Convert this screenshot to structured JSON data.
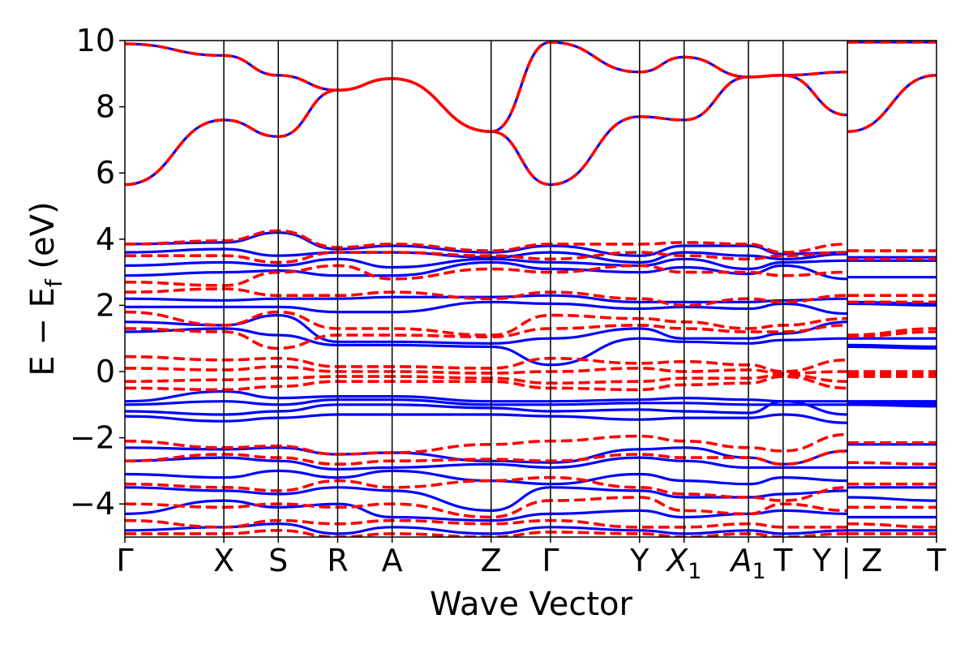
{
  "chart_data": {
    "type": "line",
    "title": "",
    "xlabel": "Wave Vector",
    "ylabel_parts": {
      "main": "E − E",
      "sub": "f",
      "unit": " (eV)"
    },
    "ylim": [
      -5,
      10
    ],
    "yticks": [
      -4,
      -2,
      0,
      2,
      4,
      6,
      8,
      10
    ],
    "ytick_labels": [
      "−4",
      "−2",
      "0",
      "2",
      "4",
      "6",
      "8",
      "10"
    ],
    "kpath_positions": [
      0,
      1.0,
      1.55,
      2.15,
      2.7,
      3.7,
      4.3,
      5.2,
      5.65,
      6.3,
      6.65,
      7.3,
      8.2
    ],
    "kpoint_labels": [
      {
        "main": "Γ",
        "sub": ""
      },
      {
        "main": "X",
        "sub": ""
      },
      {
        "main": "S",
        "sub": ""
      },
      {
        "main": "R",
        "sub": ""
      },
      {
        "main": "A",
        "sub": ""
      },
      {
        "main": "Z",
        "sub": ""
      },
      {
        "main": "Γ",
        "sub": ""
      },
      {
        "main": "Y",
        "sub": ""
      },
      {
        "main": "X",
        "sub": "1"
      },
      {
        "main": "A",
        "sub": "1"
      },
      {
        "main": "T",
        "sub": ""
      },
      {
        "main": "Y | Z",
        "sub": ""
      },
      {
        "main": "T",
        "sub": ""
      }
    ],
    "series": [
      {
        "name": "blue-solid",
        "color": "#0000ff",
        "style": "solid",
        "bands": [
          [
            5.65,
            7.6,
            7.1,
            8.5,
            8.85,
            7.25,
            5.65,
            7.7,
            7.6,
            8.9,
            8.95,
            7.75,
            7.25,
            8.95
          ],
          [
            9.9,
            9.55,
            8.95,
            8.5,
            8.85,
            7.25,
            9.95,
            9.05,
            9.5,
            8.9,
            8.95,
            9.05,
            9.95,
            9.95
          ],
          [
            3.85,
            3.9,
            4.2,
            3.7,
            3.8,
            3.6,
            3.8,
            3.5,
            3.8,
            3.8,
            3.55,
            3.6,
            3.45,
            3.45
          ],
          [
            3.6,
            3.7,
            3.5,
            3.6,
            3.6,
            3.45,
            3.6,
            3.3,
            3.6,
            3.5,
            3.4,
            3.55,
            3.35,
            3.35
          ],
          [
            3.2,
            3.3,
            3.2,
            3.4,
            3.15,
            3.4,
            3.3,
            3.2,
            3.4,
            3.1,
            3.3,
            3.35,
            2.85,
            2.85
          ],
          [
            2.9,
            3.0,
            3.05,
            2.9,
            2.9,
            3.3,
            3.1,
            3.0,
            3.15,
            2.95,
            3.2,
            2.8,
            2.1,
            2.05
          ],
          [
            2.2,
            2.15,
            2.2,
            2.2,
            2.25,
            2.25,
            2.3,
            2.1,
            2.1,
            2.1,
            2.15,
            2.2,
            2.05,
            2.0
          ],
          [
            1.95,
            1.95,
            1.95,
            1.8,
            1.8,
            2.1,
            2.05,
            1.9,
            1.95,
            1.9,
            2.05,
            1.75,
            1.0,
            1.0
          ],
          [
            1.5,
            1.4,
            1.7,
            0.9,
            0.9,
            0.85,
            1.0,
            1.3,
            1.0,
            1.0,
            1.15,
            1.5,
            0.8,
            0.75
          ],
          [
            1.2,
            1.3,
            1.1,
            0.8,
            0.8,
            0.75,
            0.2,
            1.0,
            0.9,
            0.85,
            0.95,
            1.0,
            0.75,
            0.7
          ],
          [
            -0.9,
            -0.6,
            -0.8,
            -0.75,
            -0.75,
            -0.9,
            -0.9,
            -0.85,
            -0.8,
            -0.85,
            -0.9,
            -0.9,
            -0.9,
            -0.9
          ],
          [
            -1.0,
            -0.9,
            -1.0,
            -0.85,
            -0.85,
            -1.0,
            -1.0,
            -0.95,
            -0.95,
            -1.0,
            -1.0,
            -1.0,
            -0.95,
            -0.95
          ],
          [
            -1.2,
            -1.3,
            -1.2,
            -1.0,
            -1.0,
            -1.1,
            -1.2,
            -1.15,
            -1.2,
            -1.25,
            -0.9,
            -1.3,
            -1.0,
            -1.0
          ],
          [
            -1.35,
            -1.5,
            -1.4,
            -1.3,
            -1.3,
            -1.3,
            -1.35,
            -1.45,
            -1.4,
            -1.4,
            -1.3,
            -1.55,
            -1.0,
            -1.05
          ],
          [
            -2.3,
            -2.35,
            -2.3,
            -2.5,
            -2.45,
            -2.7,
            -2.75,
            -2.35,
            -2.3,
            -2.6,
            -2.8,
            -2.4,
            -2.2,
            -2.2
          ],
          [
            -2.7,
            -2.6,
            -2.7,
            -2.95,
            -2.9,
            -2.8,
            -2.9,
            -2.6,
            -2.7,
            -2.9,
            -2.9,
            -2.9,
            -2.9,
            -2.9
          ],
          [
            -3.1,
            -3.2,
            -3.0,
            -3.2,
            -3.0,
            -3.3,
            -3.4,
            -3.1,
            -3.3,
            -3.4,
            -3.2,
            -3.3,
            -3.5,
            -3.5
          ],
          [
            -3.5,
            -3.6,
            -3.7,
            -3.5,
            -3.6,
            -4.2,
            -3.5,
            -3.6,
            -3.8,
            -3.8,
            -3.7,
            -3.6,
            -3.8,
            -3.9
          ],
          [
            -4.3,
            -3.9,
            -4.1,
            -4.0,
            -4.4,
            -4.5,
            -4.3,
            -4.2,
            -4.4,
            -4.3,
            -4.2,
            -4.3,
            -4.4,
            -4.4
          ],
          [
            -4.8,
            -4.7,
            -4.6,
            -4.9,
            -4.7,
            -4.9,
            -4.7,
            -4.8,
            -4.9,
            -4.8,
            -4.9,
            -4.8,
            -4.8,
            -4.8
          ]
        ]
      },
      {
        "name": "red-dashed",
        "color": "#ff0000",
        "style": "dashed",
        "bands": [
          [
            5.65,
            7.6,
            7.1,
            8.5,
            8.85,
            7.25,
            5.65,
            7.7,
            7.6,
            8.9,
            8.95,
            7.75,
            7.25,
            8.95
          ],
          [
            9.9,
            9.55,
            8.95,
            8.5,
            8.85,
            7.25,
            9.95,
            9.05,
            9.5,
            8.9,
            8.95,
            9.05,
            9.95,
            9.95
          ],
          [
            3.85,
            3.95,
            4.25,
            3.75,
            3.85,
            3.65,
            3.85,
            3.85,
            3.9,
            3.85,
            3.6,
            3.85,
            3.65,
            3.65
          ],
          [
            3.5,
            3.5,
            3.3,
            3.6,
            3.6,
            3.5,
            3.4,
            3.6,
            3.5,
            3.4,
            3.5,
            3.6,
            3.4,
            3.4
          ],
          [
            2.7,
            2.6,
            3.0,
            3.2,
            2.8,
            3.1,
            3.0,
            3.2,
            3.0,
            3.0,
            2.9,
            3.0,
            2.3,
            2.3
          ],
          [
            2.4,
            2.5,
            2.3,
            2.3,
            2.4,
            2.2,
            2.4,
            2.2,
            2.0,
            2.2,
            2.1,
            2.3,
            2.1,
            2.1
          ],
          [
            1.8,
            1.4,
            1.8,
            1.3,
            1.3,
            1.1,
            1.7,
            1.6,
            1.5,
            1.3,
            1.4,
            1.6,
            1.1,
            1.3
          ],
          [
            1.3,
            1.2,
            0.7,
            1.1,
            1.1,
            1.05,
            1.3,
            1.4,
            1.3,
            1.2,
            1.2,
            1.4,
            1.05,
            1.2
          ],
          [
            0.45,
            0.35,
            0.4,
            0.15,
            0.15,
            0.1,
            0.4,
            0.25,
            0.3,
            0.2,
            0.0,
            0.35,
            0.0,
            0.0
          ],
          [
            0.1,
            0.05,
            0.15,
            0.0,
            0.0,
            -0.05,
            0.0,
            0.1,
            0.0,
            0.05,
            -0.05,
            0.0,
            -0.05,
            -0.05
          ],
          [
            -0.3,
            -0.25,
            -0.2,
            -0.15,
            -0.15,
            -0.2,
            -0.35,
            -0.3,
            -0.2,
            -0.2,
            -0.1,
            -0.3,
            -0.1,
            -0.1
          ],
          [
            -0.5,
            -0.55,
            -0.45,
            -0.3,
            -0.3,
            -0.3,
            -0.5,
            -0.55,
            -0.4,
            -0.35,
            -0.15,
            -0.5,
            -0.15,
            -0.15
          ],
          [
            -2.1,
            -2.3,
            -2.25,
            -2.5,
            -2.45,
            -2.2,
            -2.1,
            -1.95,
            -2.1,
            -2.3,
            -2.4,
            -1.9,
            -2.15,
            -2.15
          ],
          [
            -2.7,
            -2.5,
            -2.6,
            -2.8,
            -2.7,
            -2.65,
            -2.7,
            -2.5,
            -2.6,
            -2.6,
            -2.8,
            -2.4,
            -2.75,
            -2.8
          ],
          [
            -3.4,
            -3.5,
            -3.6,
            -3.3,
            -3.5,
            -3.3,
            -3.2,
            -3.5,
            -3.7,
            -3.8,
            -3.9,
            -3.5,
            -3.4,
            -3.4
          ],
          [
            -4.0,
            -4.1,
            -4.0,
            -4.1,
            -4.0,
            -4.4,
            -3.9,
            -3.8,
            -4.2,
            -4.3,
            -4.0,
            -4.2,
            -4.1,
            -4.1
          ],
          [
            -4.5,
            -4.7,
            -4.5,
            -4.6,
            -4.5,
            -4.6,
            -4.5,
            -4.7,
            -4.7,
            -4.6,
            -4.7,
            -4.7,
            -4.6,
            -4.7
          ],
          [
            -4.9,
            -4.9,
            -4.8,
            -5.0,
            -4.9,
            -5.0,
            -4.85,
            -4.9,
            -5.0,
            -4.9,
            -5.0,
            -4.9,
            -4.9,
            -4.9
          ]
        ]
      }
    ]
  }
}
